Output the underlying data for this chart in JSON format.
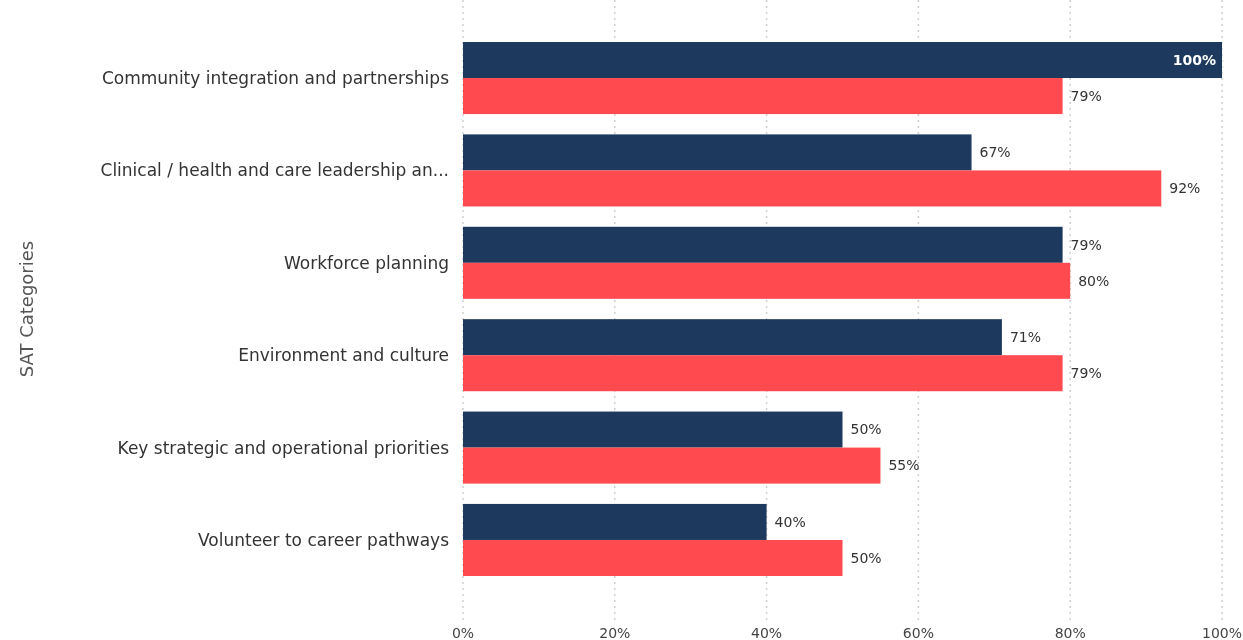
{
  "chart_data": {
    "type": "bar",
    "orientation": "horizontal",
    "ylabel": "SAT Categories",
    "categories": [
      "Community integration and partnerships",
      "Clinical / health and care leadership an...",
      "Workforce planning",
      "Environment and culture",
      "Key strategic and operational priorities",
      "Volunteer to career pathways"
    ],
    "series": [
      {
        "color": "#1d3a5e",
        "values": [
          100,
          67,
          79,
          71,
          50,
          40
        ],
        "value_labels": [
          "100%",
          "67%",
          "79%",
          "71%",
          "50%",
          "40%"
        ]
      },
      {
        "color": "#ff4b4f",
        "values": [
          79,
          92,
          80,
          79,
          55,
          50
        ],
        "value_labels": [
          "79%",
          "92%",
          "80%",
          "79%",
          "55%",
          "50%"
        ]
      }
    ],
    "xlim": [
      0,
      100
    ],
    "xticks": [
      {
        "value": 0,
        "label": "0%"
      },
      {
        "value": 20,
        "label": "20%"
      },
      {
        "value": 40,
        "label": "40%"
      },
      {
        "value": 60,
        "label": "60%"
      },
      {
        "value": 80,
        "label": "80%"
      },
      {
        "value": 100,
        "label": "100%"
      }
    ],
    "grid": "x"
  }
}
